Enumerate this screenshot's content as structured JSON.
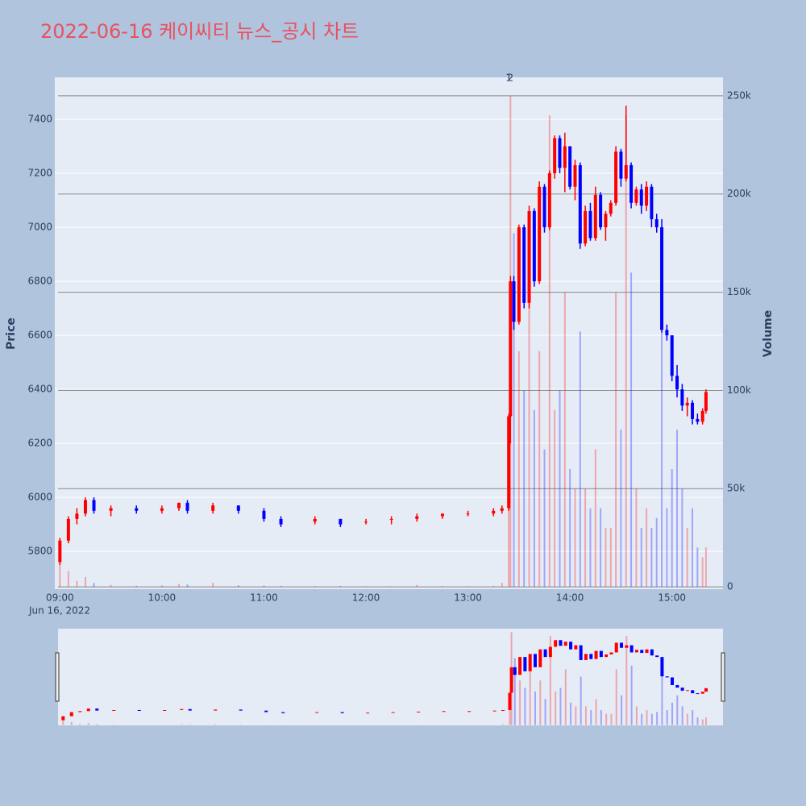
{
  "chart_data": {
    "type": "candlestick",
    "title": "2022-06-16 케이씨티 뉴스_공시 차트",
    "y_label": "Price",
    "y2_label": "Volume",
    "date_label": "Jun 16, 2022",
    "increasing_color": "#ff0000",
    "decreasing_color": "#0000ff",
    "x": [
      "2022-06-16 09:00",
      "2022-06-16 09:05",
      "2022-06-16 09:10",
      "2022-06-16 09:15",
      "2022-06-16 09:20",
      "2022-06-16 09:30",
      "2022-06-16 09:45",
      "2022-06-16 10:00",
      "2022-06-16 10:10",
      "2022-06-16 10:15",
      "2022-06-16 10:30",
      "2022-06-16 10:45",
      "2022-06-16 11:00",
      "2022-06-16 11:10",
      "2022-06-16 11:30",
      "2022-06-16 11:45",
      "2022-06-16 12:00",
      "2022-06-16 12:15",
      "2022-06-16 12:30",
      "2022-06-16 12:45",
      "2022-06-16 13:00",
      "2022-06-16 13:15",
      "2022-06-16 13:20",
      "2022-06-16 13:24",
      "2022-06-16 13:25",
      "2022-06-16 13:27",
      "2022-06-16 13:30",
      "2022-06-16 13:33",
      "2022-06-16 13:36",
      "2022-06-16 13:39",
      "2022-06-16 13:42",
      "2022-06-16 13:45",
      "2022-06-16 13:48",
      "2022-06-16 13:51",
      "2022-06-16 13:54",
      "2022-06-16 13:57",
      "2022-06-16 14:00",
      "2022-06-16 14:03",
      "2022-06-16 14:06",
      "2022-06-16 14:09",
      "2022-06-16 14:12",
      "2022-06-16 14:15",
      "2022-06-16 14:18",
      "2022-06-16 14:21",
      "2022-06-16 14:24",
      "2022-06-16 14:27",
      "2022-06-16 14:30",
      "2022-06-16 14:33",
      "2022-06-16 14:36",
      "2022-06-16 14:39",
      "2022-06-16 14:42",
      "2022-06-16 14:45",
      "2022-06-16 14:48",
      "2022-06-16 14:51",
      "2022-06-16 14:54",
      "2022-06-16 14:57",
      "2022-06-16 15:00",
      "2022-06-16 15:03",
      "2022-06-16 15:06",
      "2022-06-16 15:09",
      "2022-06-16 15:12",
      "2022-06-16 15:15",
      "2022-06-16 15:18",
      "2022-06-16 15:20"
    ],
    "open": [
      5760,
      5840,
      5920,
      5940,
      5990,
      5950,
      5960,
      5950,
      5960,
      5980,
      5950,
      5970,
      5950,
      5920,
      5910,
      5920,
      5910,
      5920,
      5920,
      5930,
      5940,
      5940,
      5950,
      5960,
      6300,
      6800,
      6650,
      7000,
      6720,
      7060,
      6800,
      7150,
      7000,
      7200,
      7330,
      7220,
      7300,
      7150,
      7230,
      6940,
      7060,
      6960,
      7120,
      7000,
      7050,
      7090,
      7280,
      7180,
      7230,
      7090,
      7140,
      7080,
      7150,
      7030,
      7000,
      6620,
      6600,
      6450,
      6400,
      6340,
      6350,
      6290,
      6280,
      6320
    ],
    "high": [
      5850,
      5930,
      5960,
      6000,
      6000,
      5970,
      5970,
      5970,
      5980,
      5990,
      5980,
      5970,
      5960,
      5930,
      5930,
      5920,
      5920,
      5930,
      5940,
      5940,
      5950,
      5960,
      5970,
      6310,
      6820,
      6820,
      7010,
      7010,
      7080,
      7070,
      7170,
      7160,
      7210,
      7340,
      7340,
      7350,
      7300,
      7250,
      7240,
      7080,
      7090,
      7150,
      7130,
      7060,
      7100,
      7300,
      7290,
      7450,
      7240,
      7150,
      7160,
      7170,
      7160,
      7050,
      7030,
      6640,
      6600,
      6490,
      6420,
      6370,
      6360,
      6310,
      6330,
      6400
    ],
    "low": [
      5750,
      5830,
      5900,
      5930,
      5940,
      5930,
      5940,
      5940,
      5950,
      5940,
      5940,
      5940,
      5910,
      5890,
      5900,
      5890,
      5900,
      5900,
      5910,
      5920,
      5930,
      5930,
      5940,
      5950,
      6200,
      6620,
      6640,
      6700,
      6700,
      6780,
      6790,
      6980,
      6990,
      7180,
      7200,
      7130,
      7140,
      7100,
      6920,
      6930,
      6950,
      6950,
      6990,
      6950,
      7040,
      7080,
      7150,
      7170,
      7070,
      7080,
      7050,
      7060,
      7000,
      6980,
      6610,
      6580,
      6430,
      6370,
      6320,
      6300,
      6270,
      6270,
      6270,
      6310
    ],
    "close": [
      5840,
      5920,
      5940,
      5990,
      5950,
      5960,
      5950,
      5960,
      5980,
      5950,
      5970,
      5950,
      5920,
      5900,
      5920,
      5900,
      5910,
      5920,
      5930,
      5940,
      5940,
      5950,
      5960,
      6300,
      6800,
      6650,
      7000,
      6720,
      7060,
      6800,
      7150,
      7000,
      7200,
      7330,
      7220,
      7300,
      7150,
      7230,
      6940,
      7060,
      6960,
      7120,
      7000,
      7050,
      7090,
      7280,
      7180,
      7230,
      7090,
      7140,
      7080,
      7150,
      7030,
      7000,
      6620,
      6600,
      6450,
      6400,
      6340,
      6350,
      6290,
      6280,
      6320,
      6390
    ],
    "volume": [
      12000,
      8000,
      3000,
      5000,
      2000,
      1000,
      500,
      800,
      1500,
      1200,
      2000,
      800,
      600,
      500,
      400,
      500,
      300,
      300,
      1000,
      400,
      300,
      500,
      2000,
      40000,
      250000,
      180000,
      120000,
      100000,
      160000,
      90000,
      120000,
      70000,
      240000,
      90000,
      100000,
      150000,
      60000,
      50000,
      130000,
      50000,
      40000,
      70000,
      40000,
      30000,
      30000,
      150000,
      80000,
      240000,
      160000,
      50000,
      30000,
      40000,
      30000,
      35000,
      130000,
      40000,
      60000,
      80000,
      50000,
      30000,
      40000,
      20000,
      15000,
      20000
    ],
    "xlim": [
      "2022-06-16 08:57",
      "2022-06-16 15:30"
    ],
    "xticks": [
      {
        "value": "2022-06-16 09:00",
        "label": "09:00"
      },
      {
        "value": "2022-06-16 10:00",
        "label": "10:00"
      },
      {
        "value": "2022-06-16 11:00",
        "label": "11:00"
      },
      {
        "value": "2022-06-16 12:00",
        "label": "12:00"
      },
      {
        "value": "2022-06-16 13:00",
        "label": "13:00"
      },
      {
        "value": "2022-06-16 14:00",
        "label": "14:00"
      },
      {
        "value": "2022-06-16 15:00",
        "label": "15:00"
      }
    ],
    "ylim": [
      5660,
      7555
    ],
    "yticks": [
      5800,
      6000,
      6200,
      6400,
      6600,
      6800,
      7000,
      7200,
      7400
    ],
    "y2lim": [
      -1200,
      259400
    ],
    "y2ticks": [
      0,
      {
        "value": 50000,
        "label": "50k"
      },
      {
        "value": 100000,
        "label": "100k"
      },
      {
        "value": 150000,
        "label": "150k"
      },
      {
        "value": 200000,
        "label": "200k"
      },
      {
        "value": 250000,
        "label": "250k"
      }
    ],
    "annotations": [
      {
        "text": "1",
        "x": "2022-06-16 13:24"
      },
      {
        "text": "2",
        "x": "2022-06-16 13:25"
      }
    ]
  }
}
